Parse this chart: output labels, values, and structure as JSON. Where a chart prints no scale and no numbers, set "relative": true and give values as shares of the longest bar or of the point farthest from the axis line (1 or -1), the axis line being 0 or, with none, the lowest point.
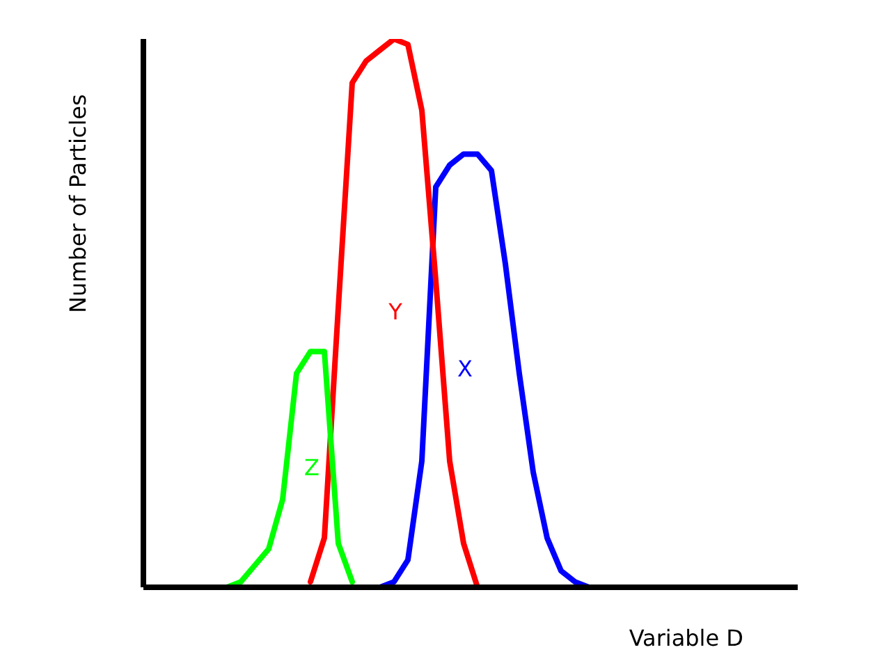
{
  "chart_data": {
    "type": "line",
    "relative": true,
    "xlabel": "Variable D",
    "ylabel": "Number of Particles",
    "categories": [
      null,
      null,
      null,
      null,
      null,
      null,
      null,
      null,
      null,
      null,
      null,
      null,
      null,
      null,
      null,
      null,
      null,
      null,
      null,
      null,
      null,
      null,
      null,
      null,
      null,
      null,
      null,
      null,
      null,
      null,
      null,
      null,
      null,
      null,
      null,
      null,
      null,
      null,
      null,
      null,
      null,
      null,
      null,
      null,
      null,
      null,
      null,
      null
    ],
    "series": [
      {
        "name": "X",
        "color": "#0000ff",
        "values": [
          null,
          null,
          null,
          null,
          null,
          null,
          null,
          null,
          null,
          null,
          null,
          null,
          null,
          null,
          null,
          null,
          null,
          0,
          0.01,
          0.05,
          0.23,
          0.73,
          0.77,
          0.79,
          0.79,
          0.76,
          0.59,
          0.39,
          0.21,
          0.09,
          0.03,
          0.01,
          0,
          null,
          null,
          null,
          null,
          null,
          null,
          null,
          null,
          null,
          null,
          null,
          null,
          null,
          null,
          null
        ]
      },
      {
        "name": "Y",
        "color": "#ff0000",
        "values": [
          null,
          null,
          null,
          null,
          null,
          null,
          null,
          null,
          null,
          null,
          null,
          null,
          0.01,
          0.09,
          0.51,
          0.92,
          0.96,
          0.98,
          1,
          0.99,
          0.87,
          0.56,
          0.23,
          0.08,
          0,
          null,
          null,
          null,
          null,
          null,
          null,
          null,
          null,
          null,
          null,
          null,
          null,
          null,
          null,
          null,
          null,
          null,
          null,
          null,
          null,
          null,
          null,
          null
        ]
      },
      {
        "name": "Z",
        "color": "#00ff00",
        "values": [
          null,
          null,
          null,
          null,
          null,
          null,
          0,
          0.01,
          0.04,
          0.07,
          0.16,
          0.39,
          0.43,
          0.43,
          0.08,
          0.01,
          null,
          null,
          null,
          null,
          null,
          null,
          null,
          null,
          null,
          null,
          null,
          null,
          null,
          null,
          null,
          null,
          null,
          null,
          null,
          null,
          null,
          null,
          null,
          null,
          null,
          null,
          null,
          null,
          null,
          null,
          null,
          null
        ]
      }
    ],
    "grid": false,
    "legend": false,
    "marker": "none",
    "line_style": "solid"
  }
}
